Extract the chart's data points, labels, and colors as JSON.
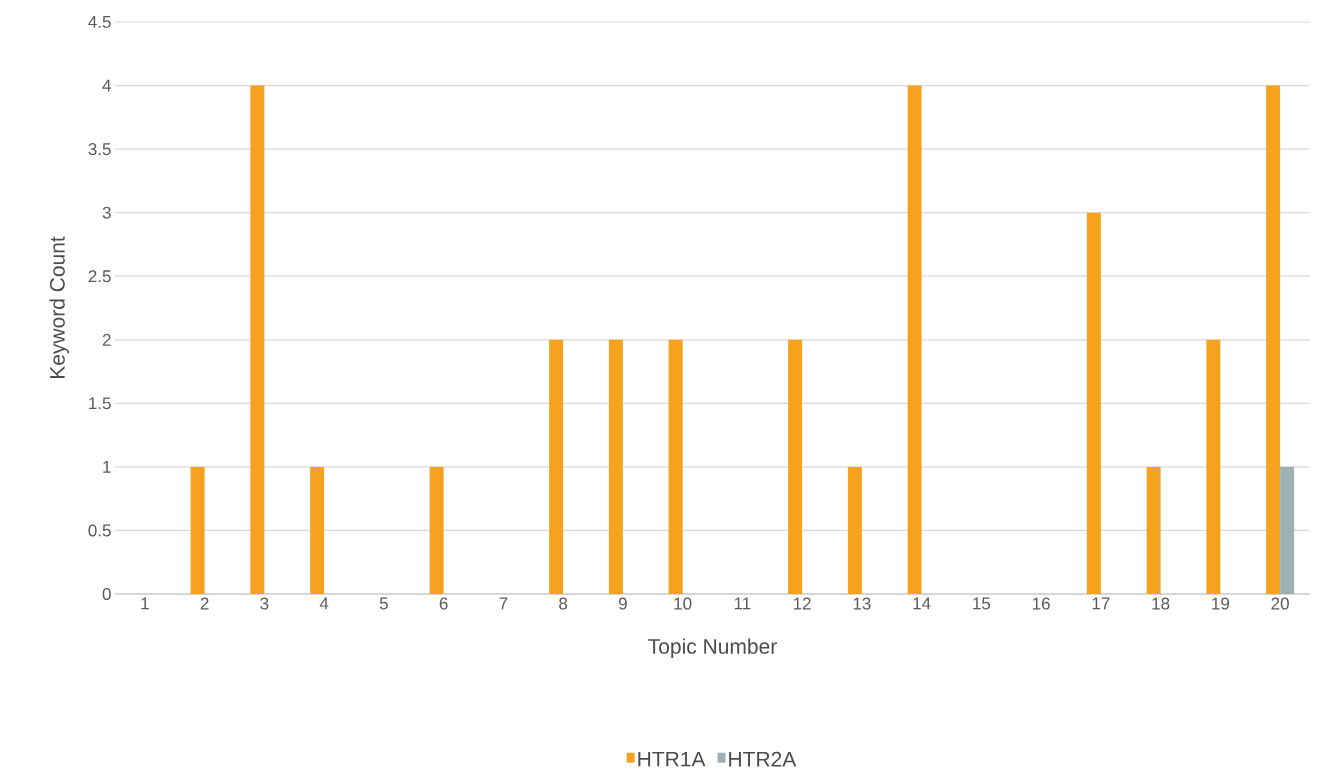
{
  "chart_data": {
    "type": "bar",
    "xlabel": "Topic Number",
    "ylabel": "Keyword Count",
    "categories": [
      "1",
      "2",
      "3",
      "4",
      "5",
      "6",
      "7",
      "8",
      "9",
      "10",
      "11",
      "12",
      "13",
      "14",
      "15",
      "16",
      "17",
      "18",
      "19",
      "20"
    ],
    "series": [
      {
        "name": "HTR1A",
        "color": "#f5a21f",
        "values": [
          0,
          1,
          4,
          1,
          0,
          1,
          0,
          2,
          2,
          2,
          0,
          2,
          1,
          4,
          0,
          0,
          3,
          1,
          2,
          4
        ]
      },
      {
        "name": "HTR2A",
        "color": "#9fb0b5",
        "values": [
          0,
          0,
          0,
          0,
          0,
          0,
          0,
          0,
          0,
          0,
          0,
          0,
          0,
          0,
          0,
          0,
          0,
          0,
          0,
          1
        ]
      }
    ],
    "ylim": [
      0,
      4.5
    ],
    "yticks": [
      0,
      0.5,
      1,
      1.5,
      2,
      2.5,
      3,
      3.5,
      4,
      4.5
    ],
    "grid": "y",
    "legend": "bottom"
  }
}
